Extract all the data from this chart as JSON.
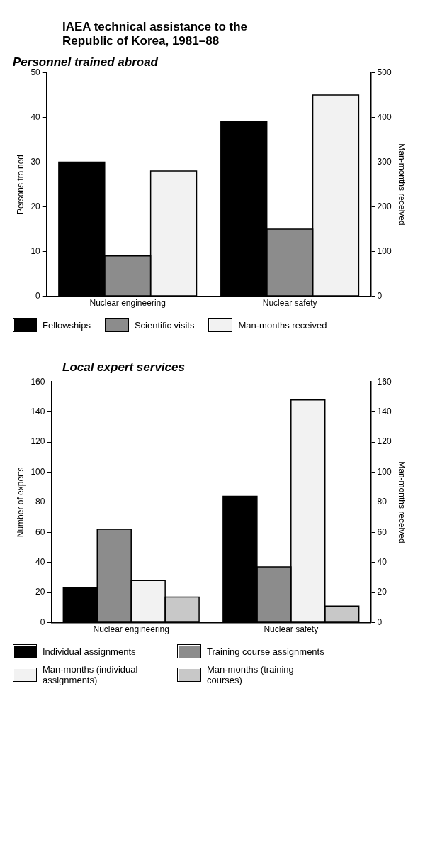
{
  "chart_data": [
    {
      "type": "bar",
      "title": "IAEA technical assistance to the Republic of Korea, 1981–88",
      "subtitle": "Personnel trained abroad",
      "ylabel": "Persons trained",
      "y2label": "Man-months received",
      "categories": [
        "Nuclear engineering",
        "Nuclear safety"
      ],
      "series": [
        {
          "name": "Fellowships",
          "color": "#000000",
          "values": [
            30,
            39
          ]
        },
        {
          "name": "Scientific visits",
          "color": "#8c8c8c",
          "values": [
            9,
            15
          ]
        },
        {
          "name": "Man-months received",
          "color": "#f2f2f2",
          "values": [
            280,
            450
          ],
          "axis": "y2"
        }
      ],
      "ylim": [
        0,
        50
      ],
      "yticks": [
        0,
        10,
        20,
        30,
        40,
        50
      ],
      "y2lim": [
        0,
        500
      ],
      "y2ticks": [
        0,
        100,
        200,
        300,
        400,
        500
      ],
      "grid": false,
      "legend": "bottom"
    },
    {
      "type": "bar",
      "title": "Local expert services",
      "ylabel": "Number of experts",
      "y2label": "Man-months received",
      "categories": [
        "Nuclear engineering",
        "Nuclear safety"
      ],
      "series": [
        {
          "name": "Individual assignments",
          "color": "#000000",
          "values": [
            23,
            84
          ]
        },
        {
          "name": "Training course assignments",
          "color": "#8c8c8c",
          "values": [
            62,
            37
          ]
        },
        {
          "name": "Man-months (individual assignments)",
          "color": "#f2f2f2",
          "values": [
            28,
            148
          ],
          "axis": "y2"
        },
        {
          "name": "Man-months (training courses)",
          "color": "#c8c8c8",
          "values": [
            17,
            11
          ],
          "axis": "y2"
        }
      ],
      "ylim": [
        0,
        160
      ],
      "yticks": [
        0,
        20,
        40,
        60,
        80,
        100,
        120,
        140,
        160
      ],
      "y2lim": [
        0,
        160
      ],
      "y2ticks": [
        0,
        20,
        40,
        60,
        80,
        100,
        120,
        140,
        160
      ],
      "grid": false,
      "legend": "bottom"
    }
  ]
}
